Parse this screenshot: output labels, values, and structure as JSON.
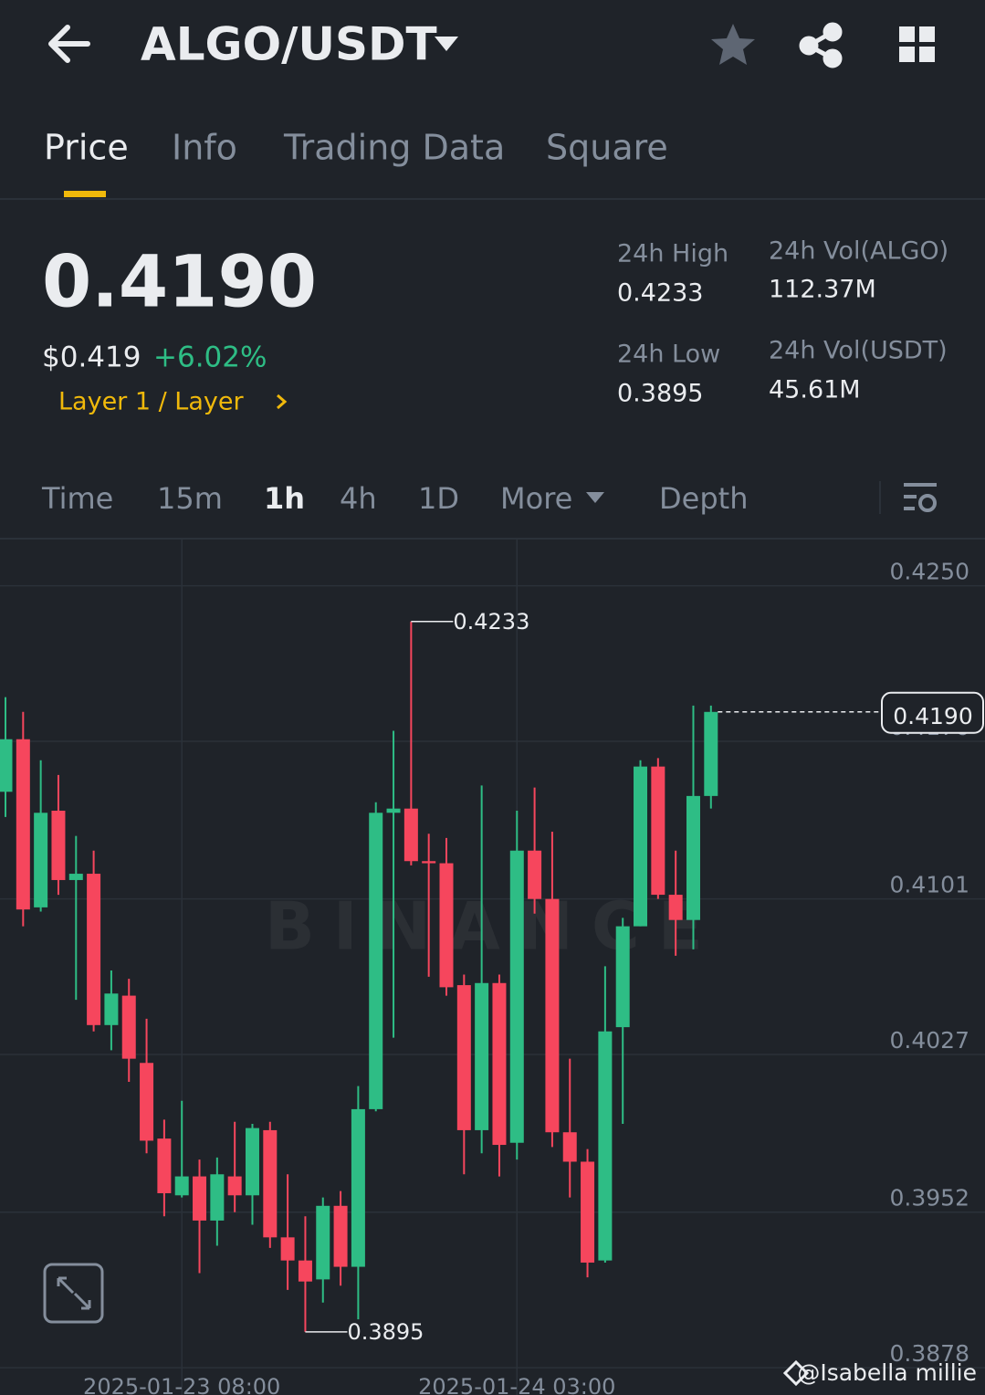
{
  "header": {
    "pair": "ALGO/USDT"
  },
  "tabs": [
    "Price",
    "Info",
    "Trading Data",
    "Square"
  ],
  "ticker": {
    "last": "0.4190",
    "usd": "$0.419",
    "change": "+6.02%",
    "sector": "Layer 1 / Layer"
  },
  "stats": [
    {
      "label": "24h High",
      "value": "0.4233"
    },
    {
      "label": "24h Low",
      "value": "0.3895"
    },
    {
      "label": "24h Vol(ALGO)",
      "value": "112.37M"
    },
    {
      "label": "24h Vol(USDT)",
      "value": "45.61M"
    }
  ],
  "intervals": [
    "Time",
    "15m",
    "1h",
    "4h",
    "1D",
    "More",
    "Depth"
  ],
  "watermark": "BINANCE",
  "credit": "@Isabella millie",
  "chart": {
    "type": "candlestick",
    "categories": [
      null,
      null,
      null,
      null,
      null,
      null,
      null,
      null,
      null,
      null,
      "2025-01-23 08:00",
      null,
      null,
      null,
      null,
      null,
      null,
      null,
      null,
      null,
      null,
      null,
      null,
      null,
      null,
      null,
      null,
      null,
      null,
      "2025-01-24 03:00",
      null,
      null,
      null,
      null,
      null,
      null,
      null,
      null,
      null,
      null,
      null
    ],
    "open": [
      0.4152,
      0.4177,
      0.4097,
      0.4143,
      0.411,
      0.4113,
      0.4041,
      0.4055,
      0.4023,
      0.3987,
      0.396,
      0.3969,
      0.3948,
      0.3969,
      0.396,
      0.3991,
      0.394,
      0.3929,
      0.392,
      0.3955,
      0.3926,
      0.4001,
      0.4142,
      0.4144,
      0.4119,
      0.4118,
      0.406,
      0.3991,
      0.4061,
      0.3985,
      0.4124,
      0.4101,
      0.399,
      0.3976,
      0.3929,
      0.404,
      0.4088,
      0.4164,
      0.4103,
      0.4091,
      0.415
    ],
    "high": [
      0.4197,
      0.419,
      0.4167,
      0.416,
      0.4131,
      0.4124,
      0.4067,
      0.4063,
      0.4044,
      0.3996,
      0.4005,
      0.3977,
      0.3978,
      0.3995,
      0.3994,
      0.3995,
      0.397,
      0.395,
      0.3959,
      0.3962,
      0.4012,
      0.4147,
      0.4181,
      0.4233,
      0.4132,
      0.413,
      0.4065,
      0.4155,
      0.4065,
      0.4143,
      0.4154,
      0.4133,
      0.4025,
      0.3982,
      0.4069,
      0.4092,
      0.4167,
      0.4168,
      0.4124,
      0.4193,
      0.4193
    ],
    "low": [
      0.414,
      0.4088,
      0.4095,
      0.4103,
      0.4053,
      0.4038,
      0.4029,
      0.4014,
      0.398,
      0.395,
      0.3959,
      0.3923,
      0.3936,
      0.3952,
      0.3946,
      0.3935,
      0.3915,
      0.3895,
      0.3909,
      0.3917,
      0.3901,
      0.4,
      0.4035,
      0.4117,
      0.4064,
      0.4055,
      0.397,
      0.398,
      0.3969,
      0.3977,
      0.4094,
      0.3983,
      0.3959,
      0.3921,
      0.3928,
      0.3994,
      0.4088,
      0.4101,
      0.4074,
      0.4077,
      0.4144
    ],
    "close": [
      0.4177,
      0.4096,
      0.4142,
      0.411,
      0.4113,
      0.4041,
      0.4056,
      0.4025,
      0.3986,
      0.3961,
      0.3969,
      0.3948,
      0.397,
      0.396,
      0.3992,
      0.394,
      0.3929,
      0.3919,
      0.3955,
      0.3926,
      0.4001,
      0.4142,
      0.4144,
      0.4119,
      0.4118,
      0.4059,
      0.3991,
      0.4061,
      0.3984,
      0.4124,
      0.4101,
      0.399,
      0.3976,
      0.3928,
      0.4038,
      0.4088,
      0.4164,
      0.4103,
      0.4091,
      0.415,
      0.419
    ],
    "up_color": "#2ebd85",
    "down_color": "#f6465d",
    "ylim": [
      0.3865,
      0.4272
    ],
    "yticks": [
      {
        "value": 0.425,
        "label": "0.4250"
      },
      {
        "value": 0.4176,
        "label": "0.4176"
      },
      0.4101,
      0.4027,
      0.3952,
      0.3878
    ],
    "max_label": 0.4233,
    "min_label": 0.3895,
    "last_price": {
      "value": 0.419,
      "label": "0.4190"
    },
    "grid": true
  }
}
